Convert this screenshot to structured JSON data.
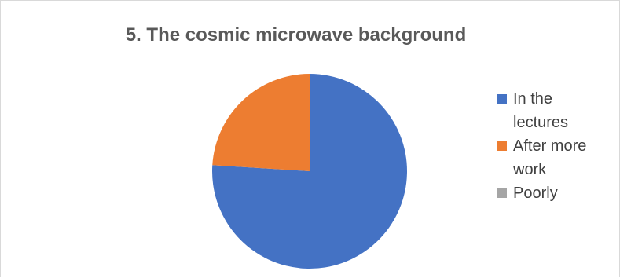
{
  "chart_data": {
    "type": "pie",
    "title": "5. The cosmic microwave background",
    "slices": [
      {
        "label": "In the lectures",
        "legend_lines": [
          "In the",
          "lectures"
        ],
        "value": 76,
        "color": "#4472c4"
      },
      {
        "label": "After more work",
        "legend_lines": [
          "After more",
          "work"
        ],
        "value": 24,
        "color": "#ed7d31"
      },
      {
        "label": "Poorly",
        "legend_lines": [
          "Poorly"
        ],
        "value": 0,
        "color": "#a5a5a5"
      }
    ],
    "legend_placement": "right"
  }
}
